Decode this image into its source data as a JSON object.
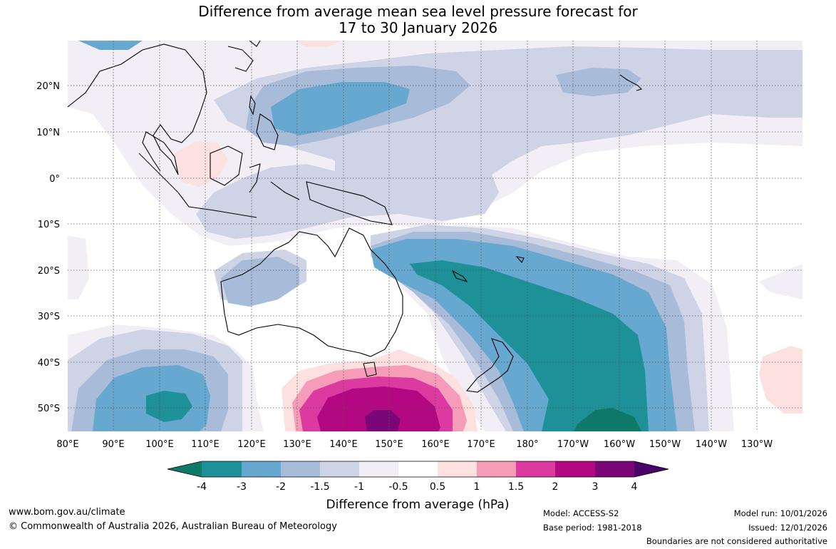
{
  "title": {
    "line1": "Difference from average mean sea level pressure forecast for",
    "line2": "17 to 30 January 2026"
  },
  "map": {
    "lon_labels": [
      "80°E",
      "90°E",
      "100°E",
      "110°E",
      "120°E",
      "130°E",
      "140°E",
      "150°E",
      "160°E",
      "170°E",
      "180°",
      "170°W",
      "160°W",
      "150°W",
      "140°W",
      "130°W"
    ],
    "lat_labels": [
      "20°N",
      "10°N",
      "0°",
      "10°S",
      "20°S",
      "30°S",
      "40°S",
      "50°S"
    ],
    "colors": {
      "ocean_bg": "#ffffff",
      "land_line": "#000000",
      "grid": "#555555"
    }
  },
  "colorbar": {
    "tick_labels": [
      "-4",
      "-3",
      "-2",
      "-1.5",
      "-1",
      "-0.5",
      "0.5",
      "1",
      "1.5",
      "2",
      "3",
      "4"
    ],
    "colors": [
      "#0f7a6a",
      "#1e9198",
      "#66a8cf",
      "#a8bcda",
      "#cfd3e6",
      "#f2eef6",
      "#ffffff",
      "#fde0e0",
      "#f69cb8",
      "#dc3aa0",
      "#b30881",
      "#7a0677",
      "#4a0368"
    ],
    "label": "Difference from average (hPa)"
  },
  "footer": {
    "website": "www.bom.gov.au/climate",
    "copyright": "© Commonwealth of Australia 2026, Australian Bureau of Meteorology",
    "model": "Model: ACCESS-S2",
    "base_period": "Base period: 1981-2018",
    "model_run": "Model run: 10/01/2026",
    "issued": "Issued: 12/01/2026",
    "disclaimer": "Boundaries are not considered authoritative"
  }
}
